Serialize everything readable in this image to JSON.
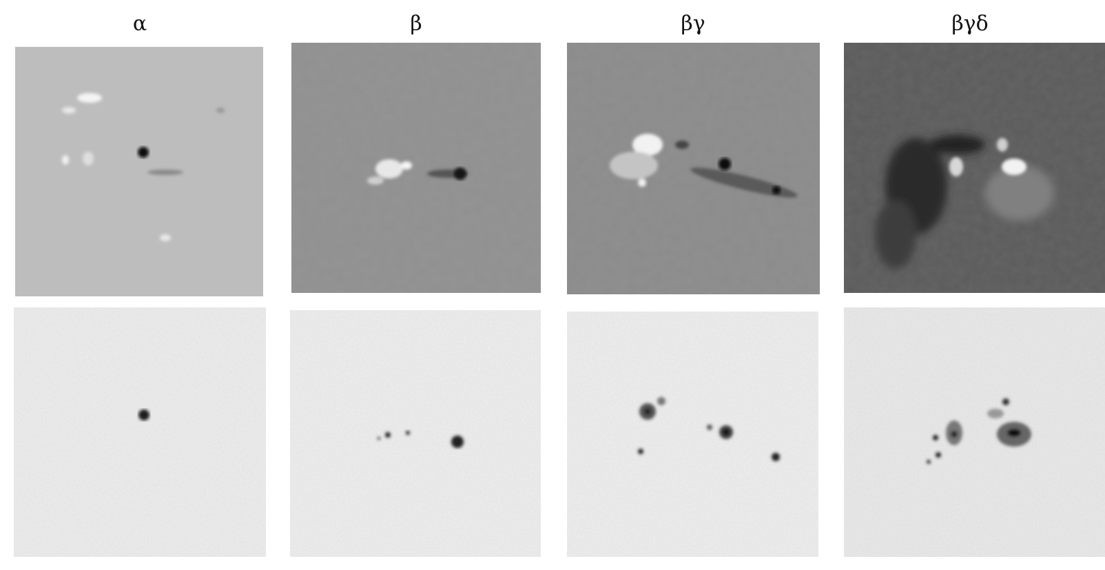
{
  "columns": [
    {
      "label": "α"
    },
    {
      "label": "β"
    },
    {
      "label": "βγ"
    },
    {
      "label": "βγδ"
    }
  ]
}
